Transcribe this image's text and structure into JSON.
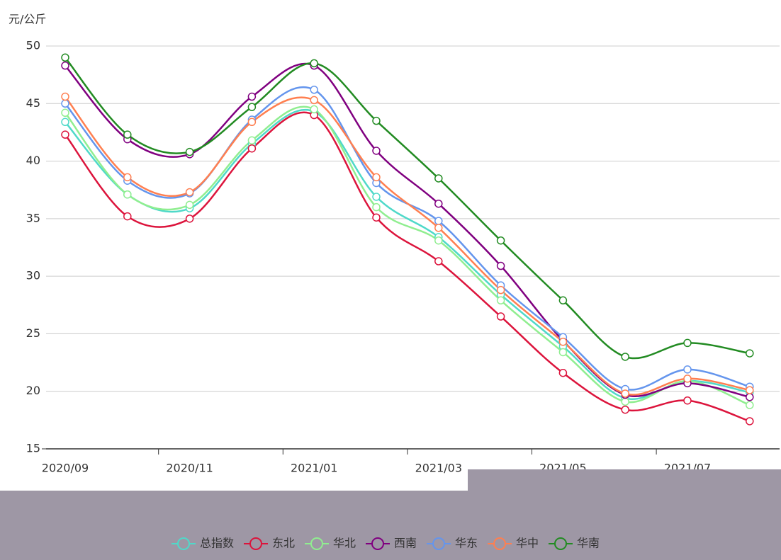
{
  "chart_data": {
    "type": "line",
    "y_label": "元/公斤",
    "categories": [
      "2020/09",
      null,
      "2020/11",
      null,
      "2021/01",
      null,
      "2021/03",
      null,
      "2021/05",
      null,
      "2021/07",
      null
    ],
    "ylim": [
      15,
      50
    ],
    "yticks": [
      15,
      20,
      25,
      30,
      35,
      40,
      45,
      50
    ],
    "grid": true,
    "legend": "bottom",
    "series": [
      {
        "name": "总指数",
        "color": "#4fd9c9",
        "values": [
          43.4,
          37.1,
          35.9,
          41.5,
          44.3,
          36.9,
          33.4,
          28.4,
          23.9,
          19.4,
          20.9,
          19.9
        ]
      },
      {
        "name": "东北",
        "color": "#dc143c",
        "values": [
          42.3,
          35.2,
          35.0,
          41.1,
          44.0,
          35.1,
          31.3,
          26.5,
          21.6,
          18.4,
          19.2,
          17.4
        ]
      },
      {
        "name": "华北",
        "color": "#90ee90",
        "values": [
          44.2,
          37.1,
          36.2,
          41.8,
          44.5,
          36.0,
          33.1,
          27.9,
          23.4,
          19.1,
          20.9,
          18.8
        ]
      },
      {
        "name": "西南",
        "color": "#800080",
        "values": [
          48.3,
          41.9,
          40.6,
          45.6,
          48.3,
          40.9,
          36.3,
          30.9,
          24.4,
          19.7,
          20.7,
          19.5
        ]
      },
      {
        "name": "华东",
        "color": "#6495ed",
        "values": [
          45.0,
          38.3,
          37.2,
          43.6,
          46.2,
          38.1,
          34.8,
          29.2,
          24.7,
          20.2,
          21.9,
          20.4
        ]
      },
      {
        "name": "华中",
        "color": "#ff7f50",
        "values": [
          45.6,
          38.6,
          37.3,
          43.4,
          45.3,
          38.6,
          34.2,
          28.8,
          24.3,
          19.8,
          21.1,
          20.1
        ]
      },
      {
        "name": "华南",
        "color": "#228b22",
        "values": [
          49.0,
          42.3,
          40.8,
          44.7,
          48.5,
          43.5,
          38.5,
          33.1,
          27.9,
          23.0,
          24.2,
          23.3
        ]
      }
    ]
  }
}
